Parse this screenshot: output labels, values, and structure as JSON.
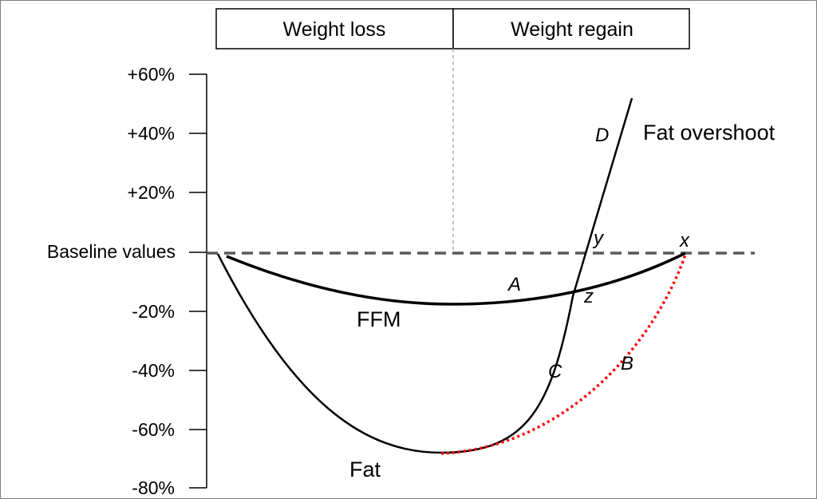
{
  "phases": {
    "loss": "Weight loss",
    "regain": "Weight regain"
  },
  "axis": {
    "baseline_label": "Baseline values",
    "ticks": [
      "+60%",
      "+40%",
      "+20%",
      "-20%",
      "-40%",
      "-60%",
      "-80%"
    ]
  },
  "labels": {
    "ffm": "FFM",
    "fat": "Fat",
    "fat_overshoot": "Fat overshoot"
  },
  "points": {
    "A": "A",
    "B": "B",
    "C": "C",
    "D": "D",
    "x": "x",
    "y": "y",
    "z": "z"
  },
  "colors": {
    "curve": "#000000",
    "baseline": "#595959",
    "divider": "#bfbfbf",
    "recovery_path": "#ff0000"
  }
}
